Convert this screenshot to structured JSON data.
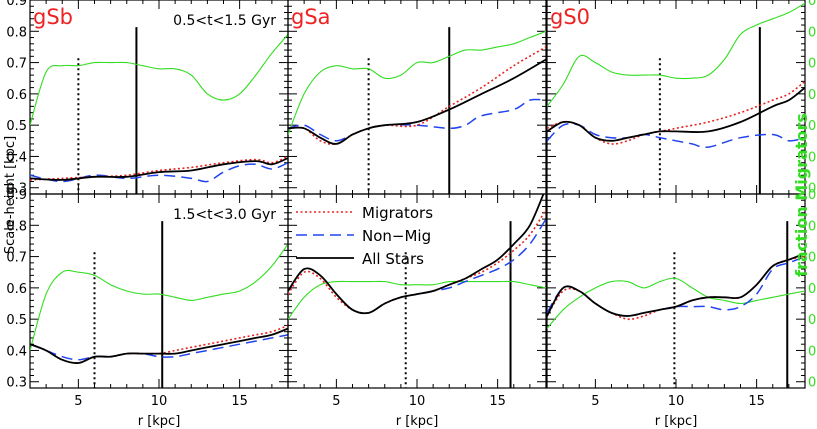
{
  "colors": {
    "migrators": "#e8211e",
    "non_migrators": "#2244ee",
    "all_stars": "#000000",
    "fraction": "#33dd22",
    "galaxy_label": "#ee2222"
  },
  "chart_data": {
    "type": "line",
    "xlabel": "r [kpc]",
    "ylabel": "Scale-height [kpc]",
    "ylabel_right": "fraction Migrators",
    "xlim": [
      2,
      18
    ],
    "ylim": [
      0.28,
      0.9
    ],
    "ylim_right": [
      0.28,
      0.9
    ],
    "xticks": [
      5,
      10,
      15
    ],
    "yticks": [
      0.3,
      0.4,
      0.5,
      0.6,
      0.7,
      0.8,
      0.9
    ],
    "xtick_labels": [
      "5",
      "10",
      "15"
    ],
    "ytick_labels": [
      "0.3",
      "0.4",
      "0.5",
      "0.6",
      "0.7",
      "0.8",
      "0.9"
    ],
    "legend": {
      "entries": [
        "Migrators",
        "Non−Mig",
        "All Stars"
      ]
    },
    "time_labels": [
      "0.5<t<1.5 Gyr",
      "1.5<t<3.0 Gyr"
    ],
    "galaxies": [
      "gSb",
      "gSa",
      "gS0"
    ],
    "panels": [
      {
        "row": 0,
        "col": 0,
        "galaxy": "gSb",
        "time": "0.5<t<1.5 Gyr",
        "vline_dotted": 5.0,
        "vline_solid": 8.6,
        "series": [
          {
            "name": "Migrators",
            "x": [
              2,
              4,
              6,
              8,
              10,
              12,
              14,
              16,
              17,
              18
            ],
            "y": [
              0.325,
              0.33,
              0.335,
              0.34,
              0.355,
              0.365,
              0.38,
              0.39,
              0.38,
              0.4
            ]
          },
          {
            "name": "Non-Mig",
            "x": [
              2,
              4,
              6,
              8,
              10,
              12,
              13,
              14,
              15,
              16,
              17,
              18
            ],
            "y": [
              0.34,
              0.32,
              0.34,
              0.33,
              0.34,
              0.33,
              0.32,
              0.35,
              0.37,
              0.375,
              0.36,
              0.38
            ]
          },
          {
            "name": "All Stars",
            "x": [
              2,
              4,
              6,
              8,
              10,
              12,
              14,
              16,
              17,
              18
            ],
            "y": [
              0.33,
              0.325,
              0.335,
              0.335,
              0.35,
              0.355,
              0.375,
              0.385,
              0.375,
              0.395
            ]
          },
          {
            "name": "fraction Migrators",
            "x": [
              2,
              3,
              4,
              5,
              6,
              7,
              8,
              9,
              10,
              11,
              12,
              13,
              14,
              15,
              16,
              17,
              18
            ],
            "y": [
              0.5,
              0.67,
              0.69,
              0.69,
              0.7,
              0.7,
              0.7,
              0.69,
              0.68,
              0.68,
              0.66,
              0.6,
              0.58,
              0.6,
              0.66,
              0.73,
              0.79
            ]
          }
        ]
      },
      {
        "row": 0,
        "col": 1,
        "galaxy": "gSa",
        "vline_dotted": 7.0,
        "vline_solid": 12.0,
        "series": [
          {
            "name": "Migrators",
            "x": [
              2,
              3,
              4,
              5,
              6,
              7,
              8,
              10,
              12,
              14,
              16,
              18
            ],
            "y": [
              0.49,
              0.49,
              0.45,
              0.44,
              0.47,
              0.49,
              0.5,
              0.5,
              0.56,
              0.62,
              0.69,
              0.75
            ]
          },
          {
            "name": "Non-Mig",
            "x": [
              2,
              3,
              4,
              5,
              6,
              7,
              8,
              10,
              12,
              13,
              14,
              16,
              17,
              18
            ],
            "y": [
              0.49,
              0.5,
              0.47,
              0.45,
              0.47,
              0.49,
              0.5,
              0.5,
              0.49,
              0.5,
              0.53,
              0.55,
              0.58,
              0.58
            ]
          },
          {
            "name": "All Stars",
            "x": [
              2,
              3,
              4,
              5,
              6,
              7,
              8,
              10,
              12,
              14,
              16,
              18
            ],
            "y": [
              0.49,
              0.49,
              0.46,
              0.44,
              0.47,
              0.49,
              0.5,
              0.51,
              0.55,
              0.6,
              0.65,
              0.71
            ]
          },
          {
            "name": "fraction Migrators",
            "x": [
              2,
              3,
              4,
              5,
              6,
              7,
              8,
              9,
              10,
              11,
              12,
              13,
              14,
              15,
              16,
              17,
              18
            ],
            "y": [
              0.47,
              0.6,
              0.67,
              0.69,
              0.68,
              0.68,
              0.65,
              0.66,
              0.7,
              0.7,
              0.72,
              0.74,
              0.74,
              0.75,
              0.76,
              0.78,
              0.8
            ]
          }
        ]
      },
      {
        "row": 0,
        "col": 2,
        "galaxy": "gS0",
        "vline_dotted": 9.0,
        "vline_solid": 15.2,
        "series": [
          {
            "name": "Migrators",
            "x": [
              2,
              3,
              4,
              5,
              6,
              7,
              8,
              9,
              10,
              12,
              14,
              16,
              17,
              18
            ],
            "y": [
              0.49,
              0.51,
              0.5,
              0.46,
              0.44,
              0.45,
              0.47,
              0.48,
              0.49,
              0.51,
              0.54,
              0.58,
              0.6,
              0.64
            ]
          },
          {
            "name": "Non-Mig",
            "x": [
              2,
              3,
              4,
              5,
              6,
              7,
              8,
              9,
              10,
              11,
              12,
              14,
              16,
              17,
              18
            ],
            "y": [
              0.45,
              0.5,
              0.5,
              0.47,
              0.46,
              0.46,
              0.47,
              0.46,
              0.45,
              0.44,
              0.43,
              0.46,
              0.47,
              0.45,
              0.46
            ]
          },
          {
            "name": "All Stars",
            "x": [
              2,
              3,
              4,
              5,
              6,
              7,
              8,
              9,
              10,
              12,
              14,
              16,
              17,
              18
            ],
            "y": [
              0.48,
              0.51,
              0.5,
              0.46,
              0.45,
              0.46,
              0.47,
              0.48,
              0.48,
              0.48,
              0.51,
              0.56,
              0.58,
              0.62
            ]
          },
          {
            "name": "fraction Migrators",
            "x": [
              2,
              3,
              4,
              5,
              6,
              7,
              8,
              9,
              10,
              11,
              12,
              13,
              14,
              15,
              16,
              17,
              18
            ],
            "y": [
              0.56,
              0.63,
              0.72,
              0.7,
              0.67,
              0.66,
              0.66,
              0.66,
              0.65,
              0.65,
              0.66,
              0.71,
              0.79,
              0.82,
              0.84,
              0.86,
              0.89
            ]
          }
        ]
      },
      {
        "row": 1,
        "col": 0,
        "galaxy": "gSb",
        "time": "1.5<t<3.0 Gyr",
        "vline_dotted": 6.0,
        "vline_solid": 10.2,
        "series": [
          {
            "name": "Migrators",
            "x": [
              2,
              3,
              4,
              5,
              6,
              7,
              8,
              9,
              10,
              11,
              12,
              13,
              14,
              15,
              16,
              17,
              18
            ],
            "y": [
              0.42,
              0.4,
              0.37,
              0.36,
              0.38,
              0.38,
              0.39,
              0.39,
              0.39,
              0.4,
              0.41,
              0.42,
              0.43,
              0.44,
              0.45,
              0.46,
              0.48
            ]
          },
          {
            "name": "Non-Mig",
            "x": [
              2,
              3,
              4,
              5,
              6,
              7,
              8,
              9,
              10,
              11,
              12,
              13,
              14,
              15,
              16,
              17,
              18
            ],
            "y": [
              0.42,
              0.4,
              0.38,
              0.37,
              0.38,
              0.38,
              0.39,
              0.39,
              0.38,
              0.38,
              0.39,
              0.4,
              0.41,
              0.42,
              0.43,
              0.44,
              0.45
            ]
          },
          {
            "name": "All Stars",
            "x": [
              2,
              3,
              4,
              5,
              6,
              7,
              8,
              9,
              10,
              11,
              12,
              13,
              14,
              15,
              16,
              17,
              18
            ],
            "y": [
              0.42,
              0.4,
              0.37,
              0.36,
              0.38,
              0.38,
              0.39,
              0.39,
              0.39,
              0.39,
              0.4,
              0.41,
              0.42,
              0.43,
              0.44,
              0.45,
              0.47
            ]
          },
          {
            "name": "fraction Migrators",
            "x": [
              2,
              3,
              4,
              5,
              6,
              7,
              8,
              9,
              10,
              11,
              12,
              13,
              14,
              15,
              16,
              17,
              18
            ],
            "y": [
              0.4,
              0.58,
              0.65,
              0.65,
              0.64,
              0.61,
              0.59,
              0.58,
              0.58,
              0.57,
              0.56,
              0.57,
              0.58,
              0.59,
              0.62,
              0.67,
              0.74
            ]
          }
        ]
      },
      {
        "row": 1,
        "col": 1,
        "galaxy": "gSa",
        "vline_dotted": 9.3,
        "vline_solid": 15.8,
        "series": [
          {
            "name": "Migrators",
            "x": [
              2,
              3,
              4,
              5,
              6,
              7,
              8,
              9,
              10,
              11,
              12,
              13,
              14,
              15,
              16,
              17,
              18
            ],
            "y": [
              0.58,
              0.65,
              0.63,
              0.57,
              0.53,
              0.52,
              0.55,
              0.57,
              0.58,
              0.59,
              0.61,
              0.63,
              0.65,
              0.68,
              0.72,
              0.77,
              0.85
            ]
          },
          {
            "name": "Non-Mig",
            "x": [
              2,
              3,
              4,
              5,
              6,
              7,
              8,
              9,
              10,
              11,
              12,
              13,
              14,
              15,
              16,
              17,
              18
            ],
            "y": [
              0.59,
              0.66,
              0.64,
              0.58,
              0.53,
              0.52,
              0.55,
              0.57,
              0.58,
              0.59,
              0.6,
              0.62,
              0.64,
              0.66,
              0.69,
              0.74,
              0.82
            ]
          },
          {
            "name": "All Stars",
            "x": [
              2,
              3,
              4,
              5,
              6,
              7,
              8,
              9,
              10,
              11,
              12,
              13,
              14,
              15,
              16,
              17,
              18
            ],
            "y": [
              0.59,
              0.66,
              0.64,
              0.58,
              0.53,
              0.52,
              0.55,
              0.57,
              0.58,
              0.59,
              0.61,
              0.63,
              0.66,
              0.69,
              0.74,
              0.8,
              0.92
            ]
          },
          {
            "name": "fraction Migrators",
            "x": [
              2,
              3,
              4,
              5,
              6,
              7,
              8,
              9,
              10,
              11,
              12,
              13,
              14,
              15,
              16,
              17,
              18
            ],
            "y": [
              0.5,
              0.57,
              0.61,
              0.62,
              0.62,
              0.62,
              0.62,
              0.61,
              0.61,
              0.61,
              0.62,
              0.62,
              0.62,
              0.62,
              0.62,
              0.61,
              0.6
            ]
          }
        ]
      },
      {
        "row": 1,
        "col": 2,
        "galaxy": "gS0",
        "vline_dotted": 9.9,
        "vline_solid": 16.9,
        "series": [
          {
            "name": "Migrators",
            "x": [
              2,
              3,
              4,
              5,
              6,
              7,
              8,
              9,
              10,
              11,
              12,
              13,
              14,
              15,
              16,
              17,
              18
            ],
            "y": [
              0.51,
              0.59,
              0.59,
              0.55,
              0.52,
              0.5,
              0.51,
              0.53,
              0.54,
              0.56,
              0.57,
              0.57,
              0.57,
              0.61,
              0.67,
              0.69,
              0.7
            ]
          },
          {
            "name": "Non-Mig",
            "x": [
              2,
              3,
              4,
              5,
              6,
              7,
              8,
              9,
              10,
              11,
              12,
              13,
              14,
              15,
              16,
              17,
              18
            ],
            "y": [
              0.52,
              0.6,
              0.59,
              0.55,
              0.52,
              0.51,
              0.52,
              0.53,
              0.54,
              0.54,
              0.54,
              0.53,
              0.54,
              0.58,
              0.66,
              0.68,
              0.7
            ]
          },
          {
            "name": "All Stars",
            "x": [
              2,
              3,
              4,
              5,
              6,
              7,
              8,
              9,
              10,
              11,
              12,
              13,
              14,
              15,
              16,
              17,
              18
            ],
            "y": [
              0.51,
              0.6,
              0.59,
              0.55,
              0.52,
              0.51,
              0.52,
              0.53,
              0.54,
              0.56,
              0.57,
              0.57,
              0.57,
              0.61,
              0.67,
              0.69,
              0.71
            ]
          },
          {
            "name": "fraction Migrators",
            "x": [
              2,
              3,
              4,
              5,
              6,
              7,
              8,
              9,
              10,
              11,
              12,
              13,
              14,
              15,
              16,
              17,
              18
            ],
            "y": [
              0.47,
              0.53,
              0.57,
              0.6,
              0.62,
              0.62,
              0.6,
              0.62,
              0.63,
              0.6,
              0.57,
              0.56,
              0.55,
              0.56,
              0.57,
              0.58,
              0.59
            ]
          }
        ]
      }
    ]
  }
}
